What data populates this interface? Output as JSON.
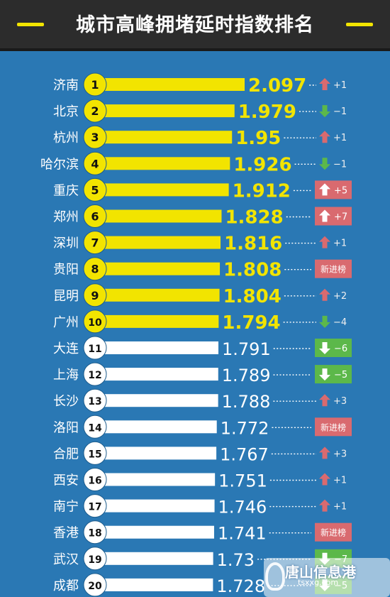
{
  "header": {
    "title": "城市高峰拥堵延时指数排名"
  },
  "colors": {
    "background": "#2a78b4",
    "header_bg": "#2c2c2c",
    "top10_bar": "#f2e400",
    "rest_bar": "#ffffff",
    "up": "#d96a6f",
    "down": "#5cb84a",
    "new_badge": "#d96a6f"
  },
  "watermark": {
    "text": "唐山信息港",
    "sub": "tsxxg.com"
  },
  "chart_data": {
    "type": "bar",
    "orientation": "horizontal",
    "title": "城市高峰拥堵延时指数排名",
    "categories": [
      "济南",
      "北京",
      "杭州",
      "哈尔滨",
      "重庆",
      "郑州",
      "深圳",
      "贵阳",
      "昆明",
      "广州",
      "大连",
      "上海",
      "长沙",
      "洛阳",
      "合肥",
      "西安",
      "南宁",
      "香港",
      "武汉",
      "成都"
    ],
    "ranks": [
      "1",
      "2",
      "3",
      "4",
      "5",
      "6",
      "7",
      "8",
      "9",
      "10",
      "11",
      "12",
      "13",
      "14",
      "15",
      "16",
      "17",
      "18",
      "19",
      "20"
    ],
    "values": [
      2.097,
      1.979,
      1.95,
      1.926,
      1.912,
      1.828,
      1.816,
      1.808,
      1.804,
      1.794,
      1.791,
      1.789,
      1.788,
      1.772,
      1.767,
      1.751,
      1.746,
      1.741,
      1.73,
      1.728
    ],
    "value_labels": [
      "2.097",
      "1.979",
      "1.95",
      "1.926",
      "1.912",
      "1.828",
      "1.816",
      "1.808",
      "1.804",
      "1.794",
      "1.791",
      "1.789",
      "1.788",
      "1.772",
      "1.767",
      "1.751",
      "1.746",
      "1.741",
      "1.73",
      "1.728"
    ],
    "changes": [
      {
        "dir": "up",
        "text": "+1",
        "badge": false
      },
      {
        "dir": "down",
        "text": "−1",
        "badge": false
      },
      {
        "dir": "up",
        "text": "+1",
        "badge": false
      },
      {
        "dir": "down",
        "text": "−1",
        "badge": false
      },
      {
        "dir": "up",
        "text": "+5",
        "badge": true
      },
      {
        "dir": "up",
        "text": "+7",
        "badge": true
      },
      {
        "dir": "up",
        "text": "+1",
        "badge": false
      },
      {
        "dir": "new",
        "text": "新进榜",
        "badge": true
      },
      {
        "dir": "up",
        "text": "+2",
        "badge": false
      },
      {
        "dir": "down",
        "text": "−4",
        "badge": false
      },
      {
        "dir": "down",
        "text": "−6",
        "badge": true
      },
      {
        "dir": "down",
        "text": "−5",
        "badge": true
      },
      {
        "dir": "up",
        "text": "+3",
        "badge": false
      },
      {
        "dir": "new",
        "text": "新进榜",
        "badge": true
      },
      {
        "dir": "up",
        "text": "+3",
        "badge": false
      },
      {
        "dir": "up",
        "text": "+1",
        "badge": false
      },
      {
        "dir": "up",
        "text": "+1",
        "badge": false
      },
      {
        "dir": "new",
        "text": "新进榜",
        "badge": true
      },
      {
        "dir": "down",
        "text": "−7",
        "badge": true
      },
      {
        "dir": "down",
        "text": "−5",
        "badge": true
      }
    ],
    "highlighted_count": 10
  }
}
